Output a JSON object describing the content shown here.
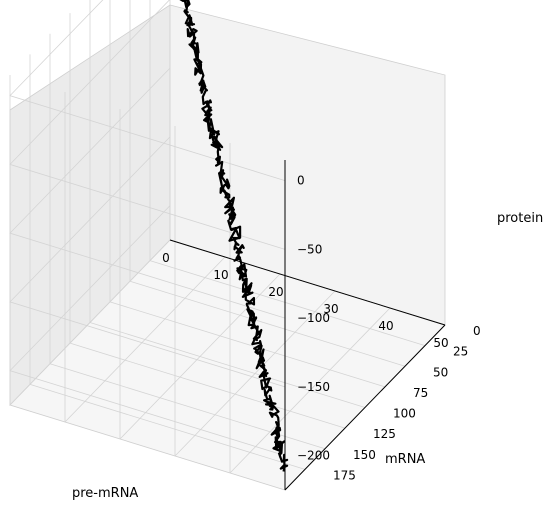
{
  "chart_data": {
    "type": "line3d",
    "xlabel": "pre-mRNA",
    "ylabel": "mRNA",
    "zlabel": "protein",
    "x_ticks": [
      "0",
      "10",
      "20",
      "30",
      "40",
      "50"
    ],
    "y_ticks": [
      "0",
      "25",
      "50",
      "75",
      "100",
      "125",
      "150",
      "175"
    ],
    "z_ticks": [
      "0",
      "−50",
      "−100",
      "−150",
      "−200"
    ],
    "xlim": [
      0,
      50
    ],
    "ylim": [
      0,
      200
    ],
    "zlim": [
      -225,
      15
    ],
    "grid": true,
    "series": [
      {
        "color": "#000000",
        "start": {
          "x": 0,
          "y": 0,
          "z": 0
        },
        "end": {
          "x": 50,
          "y": 200,
          "z": -210
        }
      }
    ]
  }
}
